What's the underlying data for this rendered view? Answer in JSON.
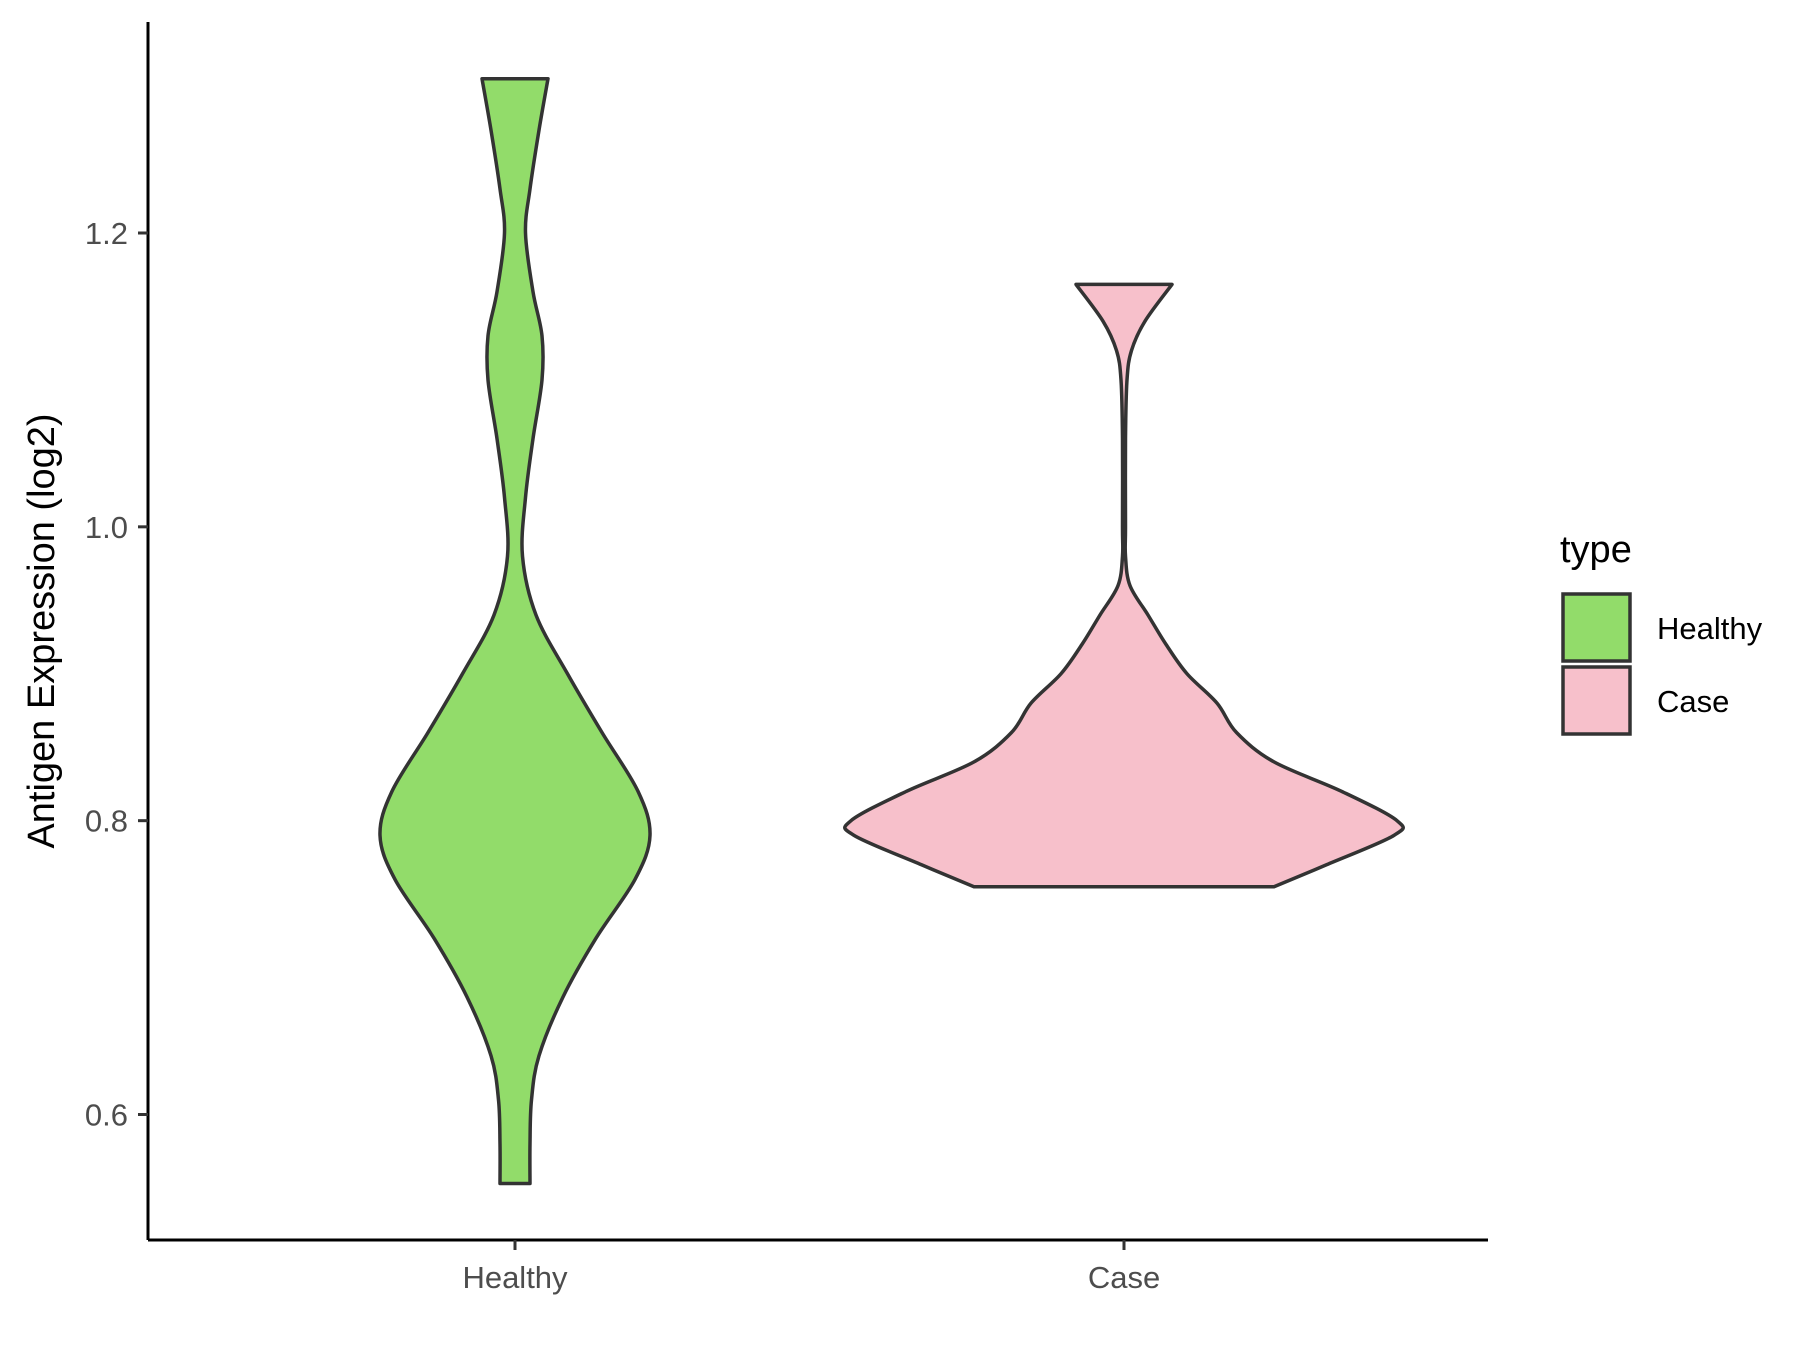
{
  "chart_data": {
    "type": "violin",
    "ylabel": "Antigen Expression (log2)",
    "xlabel": "",
    "ylim": [
      0.52,
      1.35
    ],
    "y_ticks": [
      "0.6",
      "0.8",
      "1.0",
      "1.2"
    ],
    "categories": [
      "Healthy",
      "Case"
    ],
    "legend": {
      "title": "type",
      "position": "right"
    },
    "grid": false,
    "series": [
      {
        "name": "Healthy",
        "color": "#92dc6a",
        "min": 0.553,
        "max": 1.305,
        "profile": [
          [
            0.553,
            0.1
          ],
          [
            0.58,
            0.1
          ],
          [
            0.61,
            0.11
          ],
          [
            0.64,
            0.16
          ],
          [
            0.68,
            0.32
          ],
          [
            0.72,
            0.54
          ],
          [
            0.76,
            0.8
          ],
          [
            0.79,
            0.9
          ],
          [
            0.82,
            0.82
          ],
          [
            0.86,
            0.58
          ],
          [
            0.9,
            0.35
          ],
          [
            0.94,
            0.14
          ],
          [
            0.98,
            0.05
          ],
          [
            1.02,
            0.07
          ],
          [
            1.06,
            0.12
          ],
          [
            1.1,
            0.18
          ],
          [
            1.13,
            0.18
          ],
          [
            1.16,
            0.12
          ],
          [
            1.2,
            0.07
          ],
          [
            1.23,
            0.1
          ],
          [
            1.27,
            0.16
          ],
          [
            1.305,
            0.22
          ]
        ]
      },
      {
        "name": "Case",
        "color": "#f7c0cb",
        "min": 0.755,
        "max": 1.165,
        "profile": [
          [
            0.755,
            1.0
          ],
          [
            0.77,
            1.35
          ],
          [
            0.79,
            1.8
          ],
          [
            0.8,
            1.82
          ],
          [
            0.82,
            1.45
          ],
          [
            0.84,
            1.0
          ],
          [
            0.86,
            0.75
          ],
          [
            0.88,
            0.62
          ],
          [
            0.9,
            0.42
          ],
          [
            0.92,
            0.28
          ],
          [
            0.94,
            0.16
          ],
          [
            0.96,
            0.04
          ],
          [
            0.98,
            0.01
          ],
          [
            1.0,
            0.01
          ],
          [
            1.06,
            0.01
          ],
          [
            1.1,
            0.02
          ],
          [
            1.12,
            0.05
          ],
          [
            1.14,
            0.14
          ],
          [
            1.165,
            0.32
          ]
        ]
      }
    ]
  }
}
